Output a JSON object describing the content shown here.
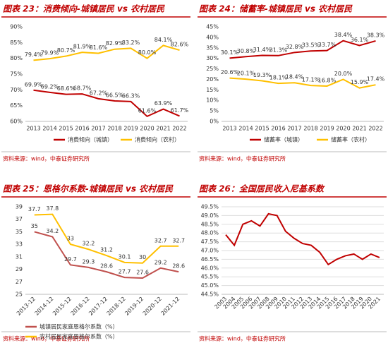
{
  "chart_data": [
    {
      "type": "line",
      "title": "图表 23：消费倾向-城镇居民 vs 农村居民",
      "source": "资料来源：wind，中泰证券研究所",
      "categories": [
        "2013",
        "2014",
        "2015",
        "2016",
        "2017",
        "2018",
        "2019",
        "2020",
        "2021",
        "2022"
      ],
      "series": [
        {
          "name": "消费倾向（城镇）",
          "color": "#c00000",
          "values": [
            69.9,
            69.2,
            68.6,
            68.7,
            67.2,
            66.5,
            66.3,
            61.6,
            63.9,
            61.7
          ],
          "value_labels": [
            "69.9%",
            "69.2%",
            "68.6%",
            "68.7%",
            "67.2%",
            "66.5%",
            "66.3%",
            "61.6%",
            "63.9%",
            "61.7%"
          ]
        },
        {
          "name": "消费倾向（农村）",
          "color": "#ffc000",
          "values": [
            79.4,
            79.9,
            80.7,
            81.9,
            81.6,
            82.9,
            83.2,
            80.0,
            84.1,
            82.6
          ],
          "value_labels": [
            "79.4%",
            "79.9%",
            "80.7%",
            "81.9%",
            "81.6%",
            "82.9%",
            "83.2%",
            "80.0%",
            "84.1%",
            "82.6%"
          ]
        }
      ],
      "ylim": [
        60,
        90
      ],
      "yticks": [
        {
          "value": 60,
          "label": "60%"
        },
        {
          "value": 65,
          "label": "65%"
        },
        {
          "value": 70,
          "label": "70%"
        },
        {
          "value": 75,
          "label": "75%"
        },
        {
          "value": 80,
          "label": "80%"
        },
        {
          "value": 85,
          "label": "85%"
        },
        {
          "value": 90,
          "label": "90%"
        }
      ],
      "grid": false,
      "legend": "bottom"
    },
    {
      "type": "line",
      "title": "图表 24：储蓄率-城镇居民 vs 农村居民",
      "source": "资料来源：wind，中泰证券研究所",
      "categories": [
        "2013",
        "2014",
        "2015",
        "2016",
        "2017",
        "2018",
        "2019",
        "2020",
        "2021",
        "2022"
      ],
      "series": [
        {
          "name": "储蓄率（城镇）",
          "color": "#c00000",
          "values": [
            30.1,
            30.8,
            31.4,
            31.3,
            32.8,
            33.5,
            33.7,
            38.4,
            36.1,
            38.3
          ],
          "value_labels": [
            "30.1%",
            "30.8%",
            "31.4%",
            "31.3%",
            "32.8%",
            "33.5%",
            "33.7%",
            "38.4%",
            "36.1%",
            "38.3%"
          ]
        },
        {
          "name": "储蓄率（农村）",
          "color": "#ffc000",
          "values": [
            20.6,
            20.1,
            19.3,
            18.1,
            18.4,
            17.1,
            16.8,
            20.0,
            15.9,
            17.4
          ],
          "value_labels": [
            "20.6%",
            "20.1%",
            "19.3%",
            "18.1%",
            "18.4%",
            "17.1%",
            "16.8%",
            "20.0%",
            "15.9%",
            "17.4%"
          ]
        }
      ],
      "ylim": [
        0,
        45
      ],
      "yticks": [
        {
          "value": 0,
          "label": "0%"
        },
        {
          "value": 5,
          "label": "5%"
        },
        {
          "value": 10,
          "label": "10%"
        },
        {
          "value": 15,
          "label": "15%"
        },
        {
          "value": 20,
          "label": "20%"
        },
        {
          "value": 25,
          "label": "25%"
        },
        {
          "value": 30,
          "label": "30%"
        },
        {
          "value": 35,
          "label": "35%"
        },
        {
          "value": 40,
          "label": "40%"
        },
        {
          "value": 45,
          "label": "45%"
        }
      ],
      "grid": false,
      "legend": "bottom"
    },
    {
      "type": "line",
      "title": "图表 25：恩格尔系数-城镇居民 vs 农村居民",
      "source": "资料来源：wind，中泰证券研究所",
      "categories": [
        "2013-12",
        "2014-12",
        "2015-12",
        "2016-12",
        "2017-12",
        "2018-12",
        "2019-12",
        "2020-12",
        "2021-12"
      ],
      "series": [
        {
          "name": "城镇居民家庭恩格尔系数（%）",
          "color": "#c0504d",
          "values": [
            35,
            34.2,
            29.7,
            29.3,
            28.6,
            27.7,
            27.6,
            29.2,
            28.6
          ]
        },
        {
          "name": "农村居民家庭恩格尔系数（%）",
          "color": "#ffc000",
          "values": [
            37.7,
            37.8,
            33,
            32.2,
            31.2,
            30.1,
            30,
            32.7,
            32.7
          ]
        }
      ],
      "ylim": [
        25,
        39
      ],
      "yticks": [
        25,
        27,
        29,
        31,
        33,
        35,
        37,
        39
      ],
      "grid": false,
      "legend": "bottom",
      "data_labels": true
    },
    {
      "type": "line",
      "title": "图表 26：全国居民收入尼基系数",
      "source": "资料来源：wind，中泰证券研究所",
      "categories": [
        "2003",
        "2004",
        "2005",
        "2006",
        "2007",
        "2008",
        "2009",
        "2010",
        "2011",
        "2012",
        "2013",
        "2014",
        "2015",
        "2016",
        "2017",
        "2018",
        "2019",
        "2020",
        "2021"
      ],
      "series": [
        {
          "color": "#c00000",
          "values": [
            47.9,
            47.3,
            48.5,
            48.7,
            48.4,
            49.1,
            49.0,
            48.1,
            47.7,
            47.4,
            47.3,
            46.9,
            46.2,
            46.5,
            46.7,
            46.8,
            46.5,
            46.8,
            46.6
          ]
        }
      ],
      "ylim": [
        44.5,
        49.5
      ],
      "yticks": [
        {
          "value": 44.5,
          "label": "44.5%"
        },
        {
          "value": 45,
          "label": "45.0%"
        },
        {
          "value": 45.5,
          "label": "45.5%"
        },
        {
          "value": 46,
          "label": "46.0%"
        },
        {
          "value": 46.5,
          "label": "46.5%"
        },
        {
          "value": 47,
          "label": "47.0%"
        },
        {
          "value": 47.5,
          "label": "47.5%"
        },
        {
          "value": 48,
          "label": "48.0%"
        },
        {
          "value": 48.5,
          "label": "48.5%"
        },
        {
          "value": 49,
          "label": "49.0%"
        },
        {
          "value": 49.5,
          "label": "49.5%"
        }
      ],
      "grid": true
    }
  ]
}
